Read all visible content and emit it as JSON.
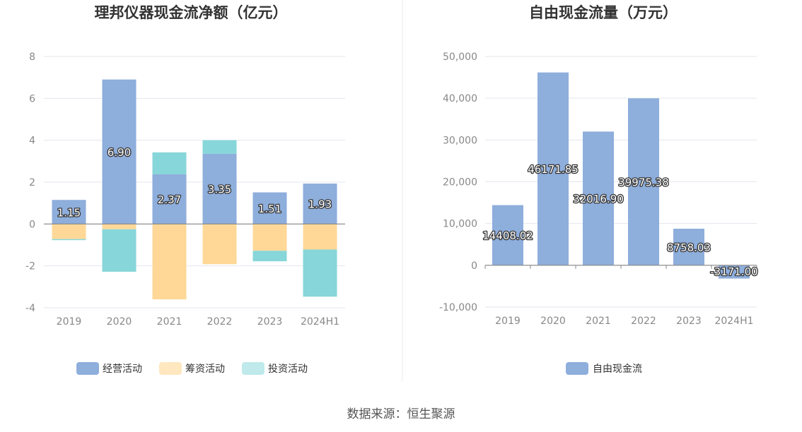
{
  "source": "数据来源：恒生聚源",
  "chart_data": [
    {
      "type": "bar",
      "stacked": true,
      "title": "理邦仪器现金流净额（亿元）",
      "categories": [
        "2019",
        "2020",
        "2021",
        "2022",
        "2023",
        "2024H1"
      ],
      "ylim": [
        -4,
        8
      ],
      "yticks": [
        "-4",
        "-2",
        "0",
        "2",
        "4",
        "6",
        "8"
      ],
      "series": [
        {
          "name": "经营活动",
          "color": "#8eaedc",
          "values": [
            1.15,
            6.9,
            2.37,
            3.35,
            1.51,
            1.93
          ]
        },
        {
          "name": "筹资活动",
          "color": "#ffd898",
          "values": [
            -0.72,
            -0.25,
            -3.6,
            -1.92,
            -1.28,
            -1.22
          ]
        },
        {
          "name": "投资活动",
          "color": "#87d6d9",
          "values": [
            -0.05,
            -2.03,
            1.05,
            0.65,
            -0.5,
            -2.25
          ]
        }
      ],
      "data_labels": [
        "1.15",
        "6.90",
        "2.37",
        "3.35",
        "1.51",
        "1.93"
      ],
      "legend": [
        {
          "name": "经营活动",
          "color": "#8eaedc"
        },
        {
          "name": "筹资活动",
          "color": "#ffe7bf"
        },
        {
          "name": "投资活动",
          "color": "#bfe9ea"
        }
      ]
    },
    {
      "type": "bar",
      "title": "自由现金流量（万元）",
      "categories": [
        "2019",
        "2020",
        "2021",
        "2022",
        "2023",
        "2024H1"
      ],
      "ylim": [
        -10000,
        50000
      ],
      "yticks": [
        "-10,000",
        "0",
        "10,000",
        "20,000",
        "30,000",
        "40,000",
        "50,000"
      ],
      "series": [
        {
          "name": "自由现金流",
          "color": "#8eaedc",
          "values": [
            14408.02,
            46171.85,
            32016.9,
            39975.38,
            8758.03,
            -3171.0
          ]
        }
      ],
      "data_labels": [
        "14408.02",
        "46171.85",
        "32016.90",
        "39975.38",
        "8758.03",
        "-3171.00"
      ],
      "legend": [
        {
          "name": "自由现金流",
          "color": "#8eaedc"
        }
      ]
    }
  ]
}
